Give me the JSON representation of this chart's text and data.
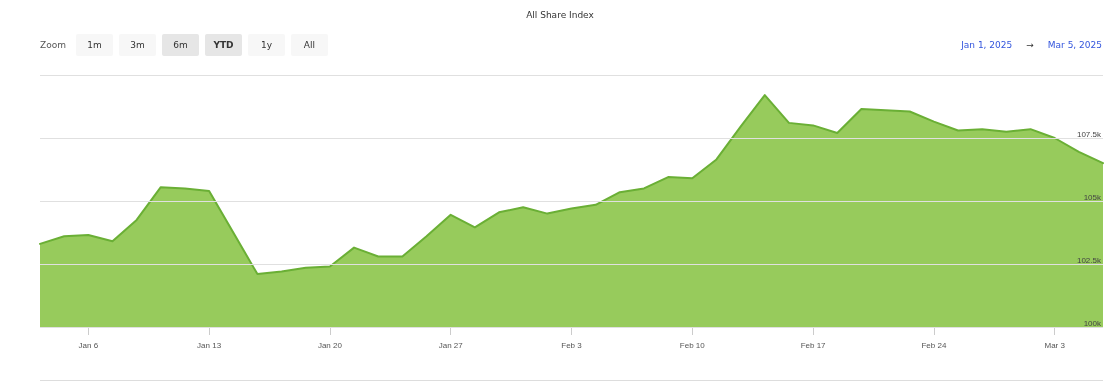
{
  "chart_data": {
    "type": "area",
    "title": "All Share Index",
    "annotations": [
      "Zoom",
      "1m",
      "3m",
      "6m",
      "YTD",
      "1y",
      "All",
      "Jan 1, 2025",
      "→",
      "Mar 5, 2025"
    ],
    "categories": [
      null,
      null,
      "Jan 6",
      null,
      null,
      null,
      null,
      "Jan 13",
      null,
      null,
      null,
      null,
      "Jan 20",
      null,
      null,
      null,
      null,
      "Jan 27",
      null,
      null,
      null,
      null,
      "Feb 3",
      null,
      null,
      null,
      null,
      "Feb 10",
      null,
      null,
      null,
      null,
      "Feb 17",
      null,
      null,
      null,
      null,
      "Feb 24",
      null,
      null,
      null,
      null,
      "Mar 3",
      null,
      null
    ],
    "series": [
      {
        "color": "#6aaf35",
        "values": [
          103300,
          103600,
          103650,
          103400,
          104250,
          105550,
          105500,
          105400,
          103750,
          102100,
          102200,
          102350,
          102400,
          103150,
          102800,
          102800,
          103600,
          104450,
          103950,
          104550,
          104750,
          104500,
          104700,
          104850,
          105350,
          105500,
          105950,
          105900,
          106650,
          107950,
          109200,
          108100,
          108000,
          107700,
          108650,
          108600,
          108550,
          108150,
          107800,
          107850,
          107750,
          107850,
          107500,
          106950,
          106500
        ]
      }
    ],
    "ylim": [
      100000,
      110000
    ],
    "yticks": [
      {
        "value": 100000,
        "label": "100k"
      },
      {
        "value": 102500,
        "label": "102.5k"
      },
      {
        "value": 105000,
        "label": "105k"
      },
      {
        "value": 107500,
        "label": "107.5k"
      },
      {
        "value": 110000,
        "label": null
      }
    ],
    "grid": "y",
    "marker": "none",
    "line_style": "solid"
  }
}
